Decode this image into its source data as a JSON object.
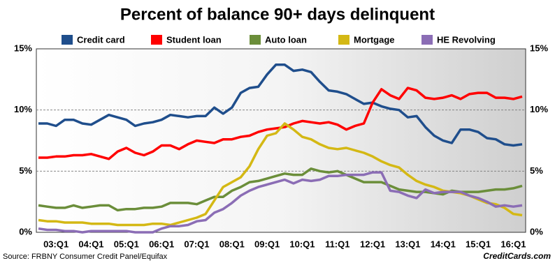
{
  "chart_data": {
    "type": "line",
    "title": "Percent of balance 90+ days delinquent",
    "source": "Source: FRBNY Consumer Credit Panel/Equifax",
    "brand": "CreditCards.com",
    "categories": [
      null,
      null,
      "03:Q1",
      null,
      null,
      null,
      "04:Q1",
      null,
      null,
      null,
      "05:Q1",
      null,
      null,
      null,
      "06:Q1",
      null,
      null,
      null,
      "07:Q1",
      null,
      null,
      null,
      "08:Q1",
      null,
      null,
      null,
      "09:Q1",
      null,
      null,
      null,
      "10:Q1",
      null,
      null,
      null,
      "11:Q1",
      null,
      null,
      null,
      "12:Q1",
      null,
      null,
      null,
      "13:Q1",
      null,
      null,
      null,
      "14:Q1",
      null,
      null,
      null,
      "15:Q1",
      null,
      null,
      null,
      "16:Q1",
      null
    ],
    "ylim": [
      0,
      15
    ],
    "yticks": [
      {
        "value": 0,
        "label": "0%"
      },
      {
        "value": 5,
        "label": "5%"
      },
      {
        "value": 10,
        "label": "10%"
      },
      {
        "value": 15,
        "label": "15%"
      }
    ],
    "grid": true,
    "series": [
      {
        "name": "Credit card",
        "color": "#1f4e8c",
        "values": [
          8.9,
          8.9,
          8.7,
          9.2,
          9.2,
          8.9,
          8.8,
          9.2,
          9.6,
          9.4,
          9.2,
          8.7,
          8.9,
          9.0,
          9.2,
          9.6,
          9.5,
          9.4,
          9.5,
          9.5,
          10.2,
          9.7,
          10.2,
          11.4,
          11.8,
          11.9,
          12.9,
          13.7,
          13.7,
          13.2,
          13.3,
          13.1,
          12.3,
          11.6,
          11.5,
          11.3,
          10.9,
          10.5,
          10.6,
          10.3,
          10.1,
          10.0,
          9.4,
          9.5,
          8.6,
          7.9,
          7.5,
          7.3,
          8.4,
          8.4,
          8.2,
          7.7,
          7.6,
          7.2,
          7.1,
          7.2
        ]
      },
      {
        "name": "Student loan",
        "color": "#ff0000",
        "values": [
          6.1,
          6.1,
          6.2,
          6.2,
          6.3,
          6.3,
          6.4,
          6.2,
          6.0,
          6.6,
          6.9,
          6.5,
          6.3,
          6.6,
          7.1,
          7.1,
          6.8,
          7.2,
          7.5,
          7.4,
          7.3,
          7.6,
          7.6,
          7.8,
          7.9,
          8.2,
          8.4,
          8.5,
          8.6,
          8.9,
          9.1,
          9.0,
          8.9,
          9.0,
          8.8,
          8.4,
          8.7,
          8.9,
          10.6,
          11.7,
          11.2,
          10.9,
          11.8,
          11.6,
          11.0,
          10.9,
          11.0,
          11.2,
          10.9,
          11.3,
          11.4,
          11.4,
          11.0,
          11.0,
          10.9,
          11.1
        ]
      },
      {
        "name": "Auto loan",
        "color": "#6b8e3a",
        "values": [
          2.2,
          2.1,
          2.0,
          2.0,
          2.2,
          2.0,
          2.1,
          2.2,
          2.2,
          1.8,
          1.9,
          1.9,
          2.0,
          2.0,
          2.1,
          2.4,
          2.4,
          2.4,
          2.3,
          2.6,
          2.9,
          2.9,
          3.4,
          3.7,
          4.1,
          4.2,
          4.4,
          4.6,
          4.8,
          4.7,
          4.7,
          5.2,
          5.0,
          4.9,
          5.0,
          4.7,
          4.4,
          4.1,
          4.1,
          4.1,
          3.8,
          3.5,
          3.4,
          3.3,
          3.3,
          3.2,
          3.1,
          3.4,
          3.3,
          3.3,
          3.3,
          3.4,
          3.5,
          3.5,
          3.6,
          3.8
        ]
      },
      {
        "name": "Mortgage",
        "color": "#d4b814",
        "values": [
          1.0,
          0.9,
          0.9,
          0.8,
          0.8,
          0.8,
          0.7,
          0.7,
          0.7,
          0.6,
          0.6,
          0.6,
          0.6,
          0.7,
          0.7,
          0.6,
          0.8,
          1.0,
          1.2,
          1.5,
          2.6,
          3.7,
          4.1,
          4.5,
          5.4,
          6.8,
          7.9,
          8.1,
          8.9,
          8.4,
          7.8,
          7.6,
          7.2,
          6.9,
          6.8,
          6.9,
          6.7,
          6.5,
          6.2,
          5.8,
          5.5,
          5.3,
          4.7,
          4.2,
          3.9,
          3.7,
          3.4,
          3.3,
          3.2,
          3.0,
          2.7,
          2.4,
          2.3,
          2.0,
          1.5,
          1.4
        ]
      },
      {
        "name": "HE Revolving",
        "color": "#8b6db5",
        "values": [
          0.3,
          0.2,
          0.2,
          0.1,
          0.1,
          0.0,
          0.1,
          0.1,
          0.1,
          0.1,
          0.1,
          0.0,
          0.0,
          0.0,
          0.3,
          0.5,
          0.5,
          0.6,
          0.9,
          1.0,
          1.6,
          1.9,
          2.4,
          3.0,
          3.4,
          3.7,
          3.9,
          4.1,
          4.3,
          4.0,
          4.3,
          4.2,
          4.3,
          4.6,
          4.6,
          4.7,
          4.7,
          4.7,
          4.9,
          4.9,
          3.4,
          3.3,
          3.0,
          2.8,
          3.5,
          3.2,
          3.3,
          3.3,
          3.3,
          3.0,
          2.8,
          2.5,
          2.1,
          2.2,
          2.1,
          2.2
        ]
      }
    ]
  }
}
